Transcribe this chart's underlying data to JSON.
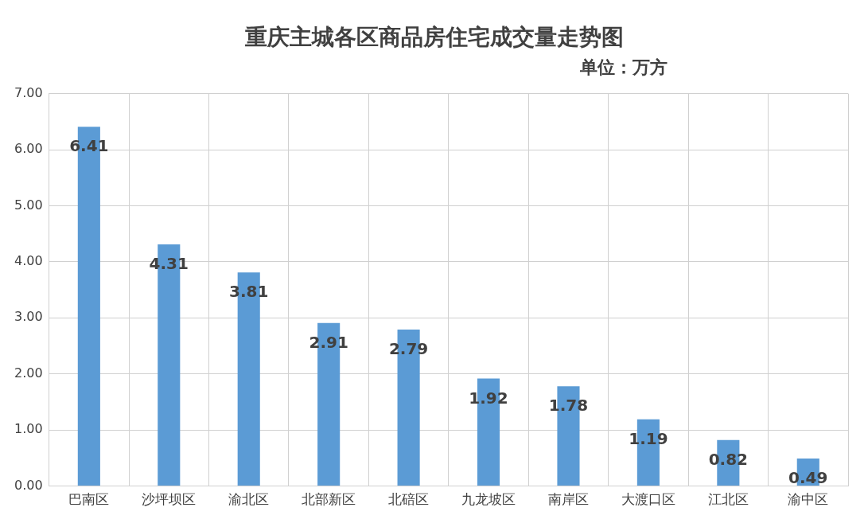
{
  "chart_data": {
    "type": "bar",
    "title": "重庆主城各区商品房住宅成交量走势图",
    "subtitle": "单位：万方",
    "categories": [
      "巴南区",
      "沙坪坝区",
      "渝北区",
      "北部新区",
      "北碚区",
      "九龙坡区",
      "南岸区",
      "大渡口区",
      "江北区",
      "渝中区"
    ],
    "values": [
      6.41,
      4.31,
      3.81,
      2.91,
      2.79,
      1.92,
      1.78,
      1.19,
      0.82,
      0.49
    ],
    "color": "#5b9bd5",
    "ylim": [
      0,
      7
    ],
    "yticks": [
      {
        "value": 0,
        "label": "0.00"
      },
      {
        "value": 1,
        "label": "1.00"
      },
      {
        "value": 2,
        "label": "2.00"
      },
      {
        "value": 3,
        "label": "3.00"
      },
      {
        "value": 4,
        "label": "4.00"
      },
      {
        "value": 5,
        "label": "5.00"
      },
      {
        "value": 6,
        "label": "6.00"
      },
      {
        "value": 7,
        "label": "7.00"
      }
    ],
    "grid": true,
    "data_labels": true
  }
}
